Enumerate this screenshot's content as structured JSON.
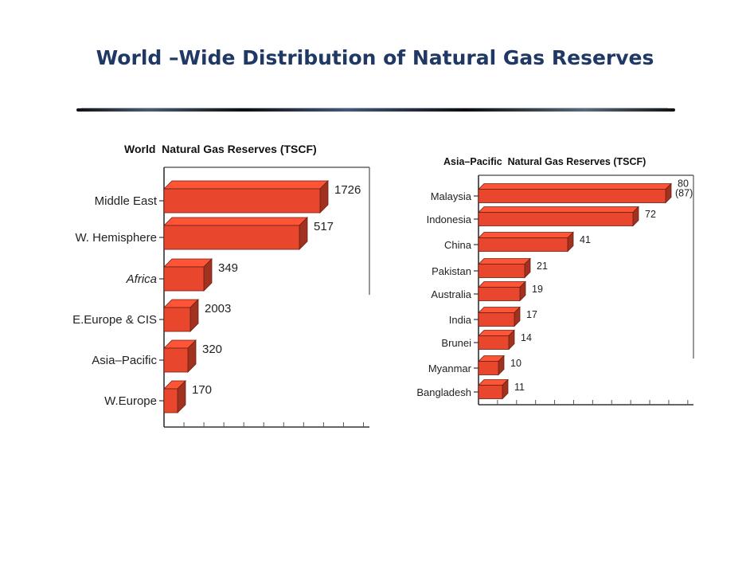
{
  "slide": {
    "title": "World –Wide Distribution of Natural Gas Reserves"
  },
  "chart_data": [
    {
      "type": "bar",
      "orientation": "horizontal",
      "title": "World  Natural Gas Reserves (TSCF)",
      "categories": [
        "Middle East",
        "W. Hemisphere",
        "Africa",
        "E.Europe & CIS",
        "Asia–Pacific",
        "W.Europe"
      ],
      "values": [
        1726,
        517,
        349,
        2003,
        320,
        170
      ],
      "value_labels": [
        "1726",
        "517",
        "349",
        "2003",
        "320",
        "170"
      ],
      "italic_categories": [
        "Africa"
      ],
      "bar_color": "#e8472e"
    },
    {
      "type": "bar",
      "orientation": "horizontal",
      "title": "Asia–Pacific  Natural Gas Reserves (TSCF)",
      "categories": [
        "Malaysia",
        "Indonesia",
        "China",
        "Pakistan",
        "Australia",
        "India",
        "Brunei",
        "Myanmar",
        "Bangladesh"
      ],
      "values": [
        80,
        72,
        41,
        21,
        19,
        17,
        14,
        10,
        11
      ],
      "value_labels": [
        "80",
        "72",
        "41",
        "21",
        "19",
        "17",
        "14",
        "10",
        "11"
      ],
      "value_sublabels": [
        "(87)",
        "",
        "",
        "",
        "",
        "",
        "",
        "",
        ""
      ],
      "bar_color": "#e8472e"
    }
  ]
}
